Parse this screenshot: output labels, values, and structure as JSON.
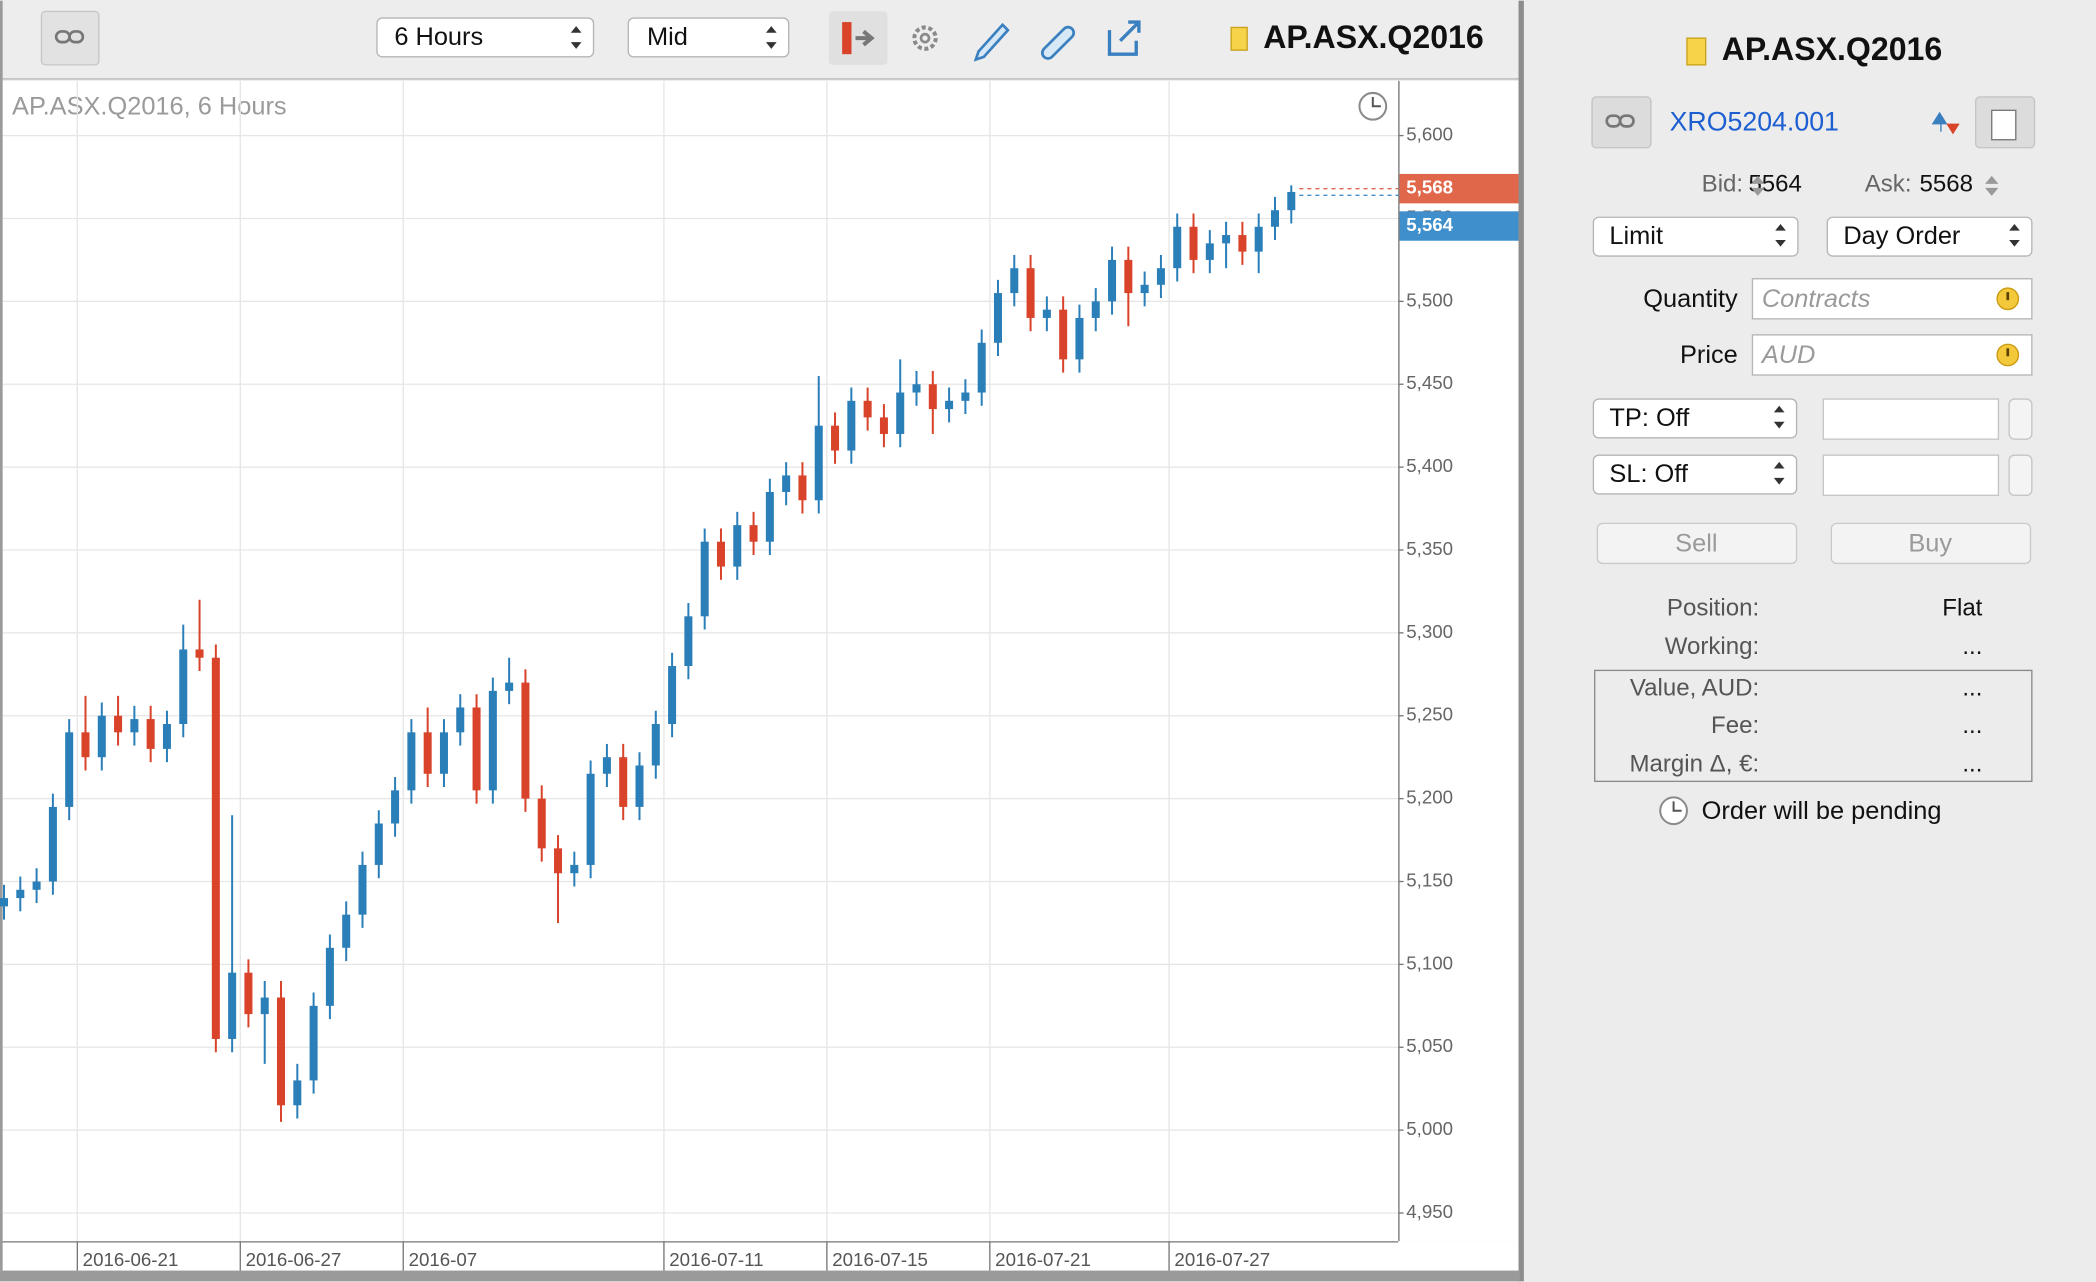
{
  "toolbar": {
    "interval": "6 Hours",
    "price_type": "Mid",
    "symbol": "AP.ASX.Q2016"
  },
  "chart_data": {
    "type": "candlestick",
    "title": "AP.ASX.Q2016, 6 Hours",
    "categories": [
      null,
      null,
      null,
      null,
      null,
      "2016-06-21",
      null,
      null,
      null,
      null,
      null,
      null,
      null,
      null,
      null,
      "2016-06-27",
      null,
      null,
      null,
      null,
      null,
      null,
      null,
      null,
      null,
      "2016-07",
      null,
      null,
      null,
      null,
      null,
      null,
      null,
      null,
      null,
      null,
      null,
      null,
      null,
      null,
      null,
      "2016-07-11",
      null,
      null,
      null,
      null,
      null,
      null,
      null,
      null,
      null,
      "2016-07-15",
      null,
      null,
      null,
      null,
      null,
      null,
      null,
      null,
      null,
      "2016-07-21",
      null,
      null,
      null,
      null,
      null,
      null,
      null,
      null,
      null,
      null,
      "2016-07-27",
      null,
      null,
      null,
      null,
      null,
      null,
      null
    ],
    "open": [
      5135,
      5140,
      5145,
      5150,
      5195,
      5240,
      5225,
      5250,
      5240,
      5248,
      5230,
      5245,
      5290,
      5285,
      5055,
      5095,
      5070,
      5080,
      5015,
      5030,
      5075,
      5110,
      5130,
      5160,
      5185,
      5205,
      5240,
      5215,
      5240,
      5255,
      5205,
      5265,
      5270,
      5200,
      5170,
      5155,
      5160,
      5215,
      5225,
      5195,
      5220,
      5245,
      5280,
      5310,
      5355,
      5340,
      5365,
      5355,
      5385,
      5395,
      5380,
      5425,
      5410,
      5440,
      5430,
      5420,
      5445,
      5450,
      5435,
      5440,
      5445,
      5475,
      5505,
      5520,
      5490,
      5495,
      5465,
      5490,
      5500,
      5525,
      5505,
      5510,
      5520,
      5545,
      5525,
      5535,
      5540,
      5530,
      5545,
      5555
    ],
    "high": [
      5148,
      5153,
      5158,
      5203,
      5248,
      5262,
      5258,
      5262,
      5256,
      5256,
      5253,
      5305,
      5320,
      5293,
      5190,
      5103,
      5090,
      5090,
      5040,
      5083,
      5118,
      5138,
      5168,
      5193,
      5213,
      5248,
      5255,
      5248,
      5263,
      5263,
      5273,
      5285,
      5278,
      5208,
      5178,
      5168,
      5223,
      5233,
      5233,
      5228,
      5253,
      5288,
      5318,
      5363,
      5363,
      5373,
      5373,
      5393,
      5403,
      5403,
      5455,
      5433,
      5448,
      5448,
      5438,
      5465,
      5458,
      5458,
      5448,
      5453,
      5483,
      5513,
      5528,
      5528,
      5503,
      5503,
      5498,
      5508,
      5533,
      5533,
      5518,
      5528,
      5553,
      5553,
      5543,
      5548,
      5548,
      5553,
      5563,
      5570
    ],
    "low": [
      5127,
      5132,
      5137,
      5142,
      5187,
      5217,
      5217,
      5232,
      5232,
      5222,
      5222,
      5237,
      5277,
      5047,
      5047,
      5062,
      5040,
      5005,
      5007,
      5022,
      5067,
      5102,
      5122,
      5152,
      5177,
      5197,
      5207,
      5207,
      5232,
      5197,
      5197,
      5257,
      5192,
      5162,
      5125,
      5147,
      5152,
      5207,
      5187,
      5187,
      5212,
      5237,
      5272,
      5302,
      5332,
      5332,
      5347,
      5347,
      5377,
      5372,
      5372,
      5402,
      5402,
      5422,
      5412,
      5412,
      5437,
      5420,
      5427,
      5432,
      5437,
      5467,
      5497,
      5482,
      5482,
      5457,
      5457,
      5482,
      5492,
      5485,
      5497,
      5502,
      5512,
      5517,
      5517,
      5520,
      5522,
      5517,
      5537,
      5547
    ],
    "close": [
      5140,
      5145,
      5150,
      5195,
      5240,
      5225,
      5250,
      5240,
      5248,
      5230,
      5245,
      5290,
      5285,
      5055,
      5095,
      5070,
      5080,
      5015,
      5030,
      5075,
      5110,
      5130,
      5160,
      5185,
      5205,
      5240,
      5215,
      5240,
      5255,
      5205,
      5265,
      5270,
      5200,
      5170,
      5155,
      5160,
      5215,
      5225,
      5195,
      5220,
      5245,
      5280,
      5310,
      5355,
      5340,
      5365,
      5355,
      5385,
      5395,
      5380,
      5425,
      5410,
      5440,
      5430,
      5420,
      5445,
      5450,
      5435,
      5440,
      5445,
      5475,
      5505,
      5520,
      5490,
      5495,
      5465,
      5490,
      5500,
      5525,
      5505,
      5510,
      5520,
      5545,
      5525,
      5535,
      5540,
      5530,
      5545,
      5555,
      5566
    ],
    "up_color": "#2b7fb9",
    "down_color": "#d8432a",
    "ylim": [
      4933,
      5633
    ],
    "yticks": [
      {
        "value": 4950,
        "label": "4,950"
      },
      {
        "value": 5000,
        "label": "5,000"
      },
      {
        "value": 5050,
        "label": "5,050"
      },
      {
        "value": 5100,
        "label": "5,100"
      },
      {
        "value": 5150,
        "label": "5,150"
      },
      {
        "value": 5200,
        "label": "5,200"
      },
      {
        "value": 5250,
        "label": "5,250"
      },
      {
        "value": 5300,
        "label": "5,300"
      },
      {
        "value": 5350,
        "label": "5,350"
      },
      {
        "value": 5400,
        "label": "5,400"
      },
      {
        "value": 5450,
        "label": "5,450"
      },
      {
        "value": 5500,
        "label": "5,500"
      },
      {
        "value": 5550,
        "label": "5,550"
      },
      {
        "value": 5600,
        "label": "5,600"
      }
    ],
    "grid": true,
    "price_markers": [
      {
        "value": 5568,
        "label": "5,568",
        "color": "#e0674a"
      },
      {
        "value": 5564,
        "label": "5,564",
        "color": "#3f8fcc"
      }
    ]
  },
  "order_panel": {
    "symbol": "AP.ASX.Q2016",
    "account": "XRO5204.001",
    "bid_label": "Bid:",
    "bid": 5564,
    "ask_label": "Ask:",
    "ask": 5568,
    "order_type": "Limit",
    "time_in_force": "Day Order",
    "quantity_label": "Quantity",
    "quantity_placeholder": "Contracts",
    "price_label": "Price",
    "price_placeholder": "AUD",
    "take_profit": "TP: Off",
    "stop_loss": "SL: Off",
    "sell": "Sell",
    "buy": "Buy",
    "rows": [
      [
        "Position:",
        "Flat"
      ],
      [
        "Working:",
        "..."
      ],
      [
        "Value, AUD:",
        "..."
      ],
      [
        "Fee:",
        "..."
      ],
      [
        "Margin Δ, €:",
        "..."
      ]
    ],
    "note": "Order will be pending"
  }
}
